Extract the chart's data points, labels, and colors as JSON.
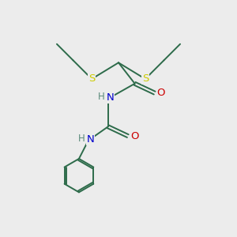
{
  "background_color": "#ececec",
  "bond_color": "#2d6b4a",
  "S_color": "#cccc00",
  "N_color": "#0000cc",
  "O_color": "#cc0000",
  "H_color": "#5a8a7a",
  "figsize": [
    3.0,
    3.0
  ],
  "dpi": 100,
  "xlim": [
    0,
    10
  ],
  "ylim": [
    0,
    10
  ]
}
